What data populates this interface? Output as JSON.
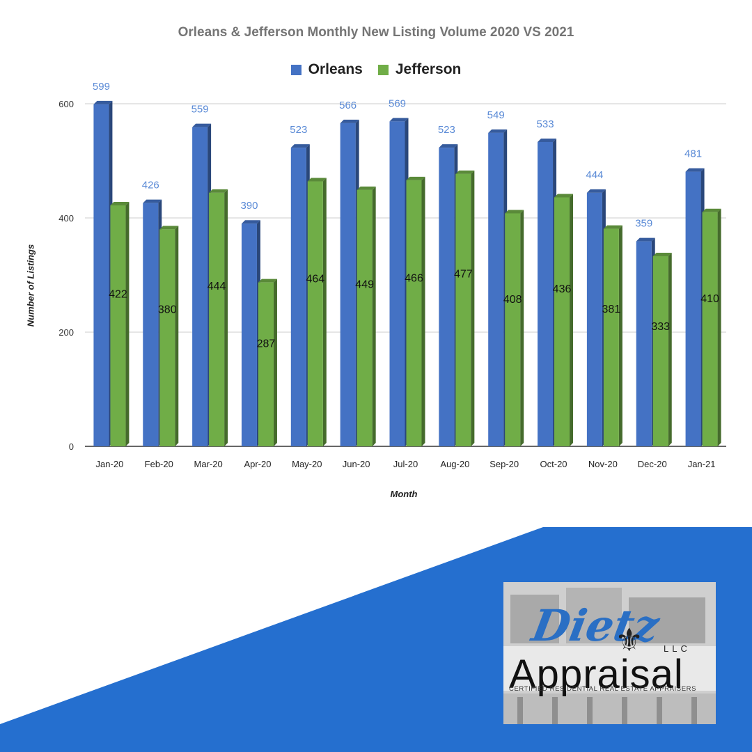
{
  "chart_data": {
    "type": "bar",
    "title": "Orleans & Jefferson  Monthly New Listing Volume 2020 VS 2021",
    "xlabel": "Month",
    "ylabel": "Number of Listings",
    "categories": [
      "Jan-20",
      "Feb-20",
      "Mar-20",
      "Apr-20",
      "May-20",
      "Jun-20",
      "Jul-20",
      "Aug-20",
      "Sep-20",
      "Oct-20",
      "Nov-20",
      "Dec-20",
      "Jan-21"
    ],
    "series": [
      {
        "name": "Orleans",
        "color": "#4472c4",
        "label_color": "#5a8ad6",
        "values": [
          599,
          426,
          559,
          390,
          523,
          566,
          569,
          523,
          549,
          533,
          444,
          359,
          481
        ]
      },
      {
        "name": "Jefferson",
        "color": "#70ad47",
        "label_color": "#111111",
        "values": [
          422,
          380,
          444,
          287,
          464,
          449,
          466,
          477,
          408,
          436,
          381,
          333,
          410
        ]
      }
    ],
    "ylim": [
      0,
      600
    ],
    "yticks": [
      0,
      200,
      400,
      600
    ],
    "grid": true,
    "legend": "top-center"
  },
  "banner": {
    "color": "#256fcf"
  },
  "logo": {
    "script_text": "Dietz",
    "fleur": "⚜",
    "llc": "LLC",
    "name": "Appraisal",
    "tagline": "CERTIFIED RESIDENTIAL REAL ESTATE APPRAISERS"
  }
}
